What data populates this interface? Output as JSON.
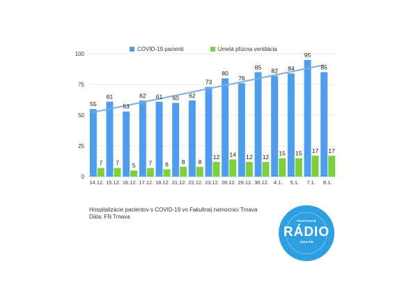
{
  "chart_data": {
    "type": "bar",
    "categories": [
      "14.12.",
      "15.12.",
      "16.12.",
      "17.12.",
      "18.12.",
      "21.12.",
      "22.12.",
      "23.12.",
      "28.12.",
      "29.12.",
      "30.12.",
      "4.1.",
      "5.1.",
      "7.1.",
      "8.1."
    ],
    "series": [
      {
        "name": "COVID-19 pacienti",
        "values": [
          55,
          61,
          53,
          62,
          61,
          60,
          62,
          73,
          80,
          76,
          85,
          82,
          84,
          95,
          85
        ],
        "color": "#4f9ded"
      },
      {
        "name": "Umelá pľúcna ventilácia",
        "values": [
          7,
          7,
          5,
          7,
          6,
          8,
          8,
          12,
          14,
          12,
          12,
          15,
          15,
          17,
          17
        ],
        "color": "#7dd13f"
      }
    ],
    "trendline": {
      "series": "COVID-19 pacienti",
      "type": "linear",
      "color": "#7aaedc"
    },
    "yticks": [
      0,
      25,
      50,
      75,
      100
    ],
    "ylim": [
      0,
      100
    ],
    "grid": true,
    "legend": "top"
  },
  "caption": {
    "line1": "Hospitalizácie pacientov s COVID-19 vo Fakultnej nemocnici Trnava",
    "line2": "Dáta: FN Trnava"
  },
  "logo": {
    "top_text": "TRNAVSKÉ",
    "main_text": "RÁDIO",
    "bottom_text": "102.6 FM",
    "color": "#2e9fe0"
  }
}
